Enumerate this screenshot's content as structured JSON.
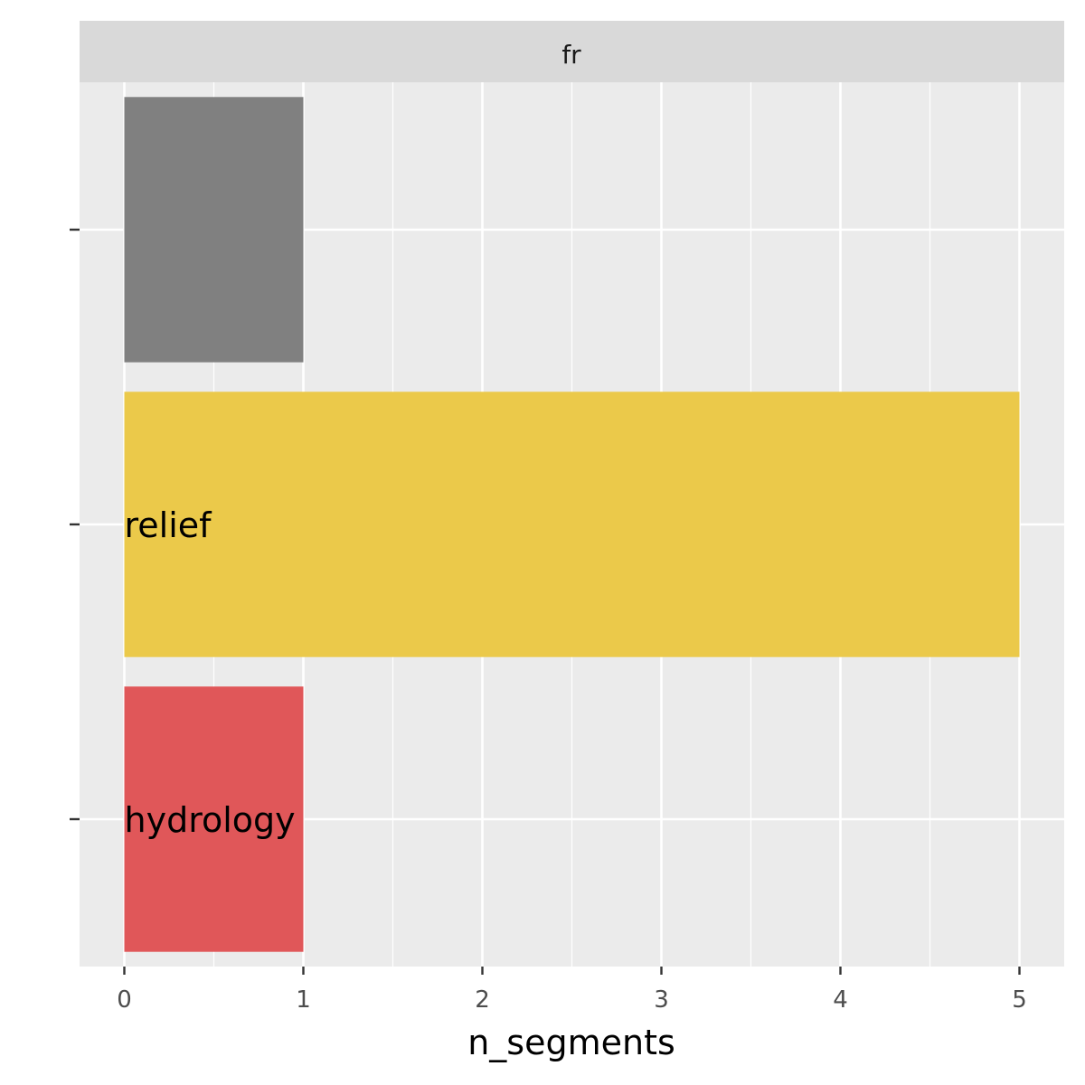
{
  "chart_data": {
    "type": "bar",
    "orientation": "horizontal",
    "facet_label": "fr",
    "xlabel": "n_segments",
    "ylabel": "",
    "xlim": [
      -0.25,
      5.25
    ],
    "x_ticks": [
      "0",
      "1",
      "2",
      "3",
      "4",
      "5"
    ],
    "categories": [
      "",
      "relief",
      "hydrology"
    ],
    "values": [
      1,
      5,
      1
    ],
    "bar_labels": [
      "",
      "relief",
      "hydrology"
    ],
    "bar_colors": [
      "#808080",
      "#ebc94a",
      "#e05759"
    ],
    "grid": true,
    "panel_background": "#ebebeb",
    "strip_background": "#d9d9d9"
  }
}
